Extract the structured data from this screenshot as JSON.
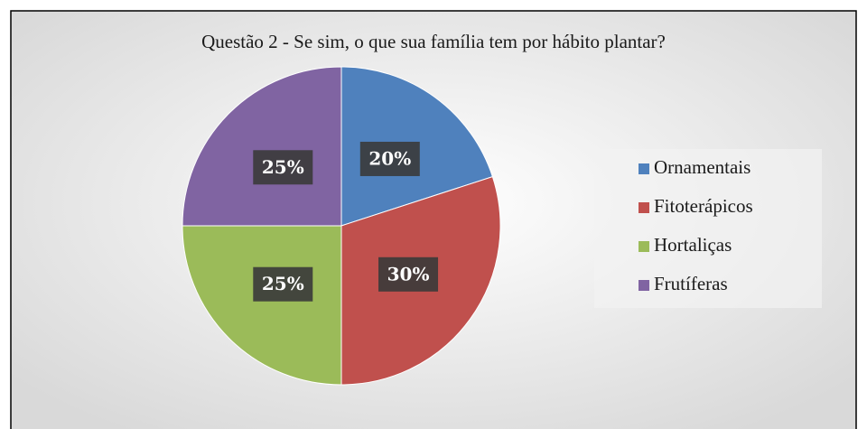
{
  "chart_data": {
    "type": "pie",
    "title": "Questão 2 - Se sim, o que sua família tem por hábito plantar?",
    "categories": [
      "Ornamentais",
      "Fitoterápicos",
      "Hortaliças",
      "Frutíferas"
    ],
    "values": [
      20,
      30,
      25,
      25
    ],
    "value_labels": [
      "20%",
      "30%",
      "25%",
      "25%"
    ],
    "colors": [
      "#4f81bd",
      "#c0504d",
      "#9bbb59",
      "#8064a2"
    ],
    "legend": "right"
  }
}
